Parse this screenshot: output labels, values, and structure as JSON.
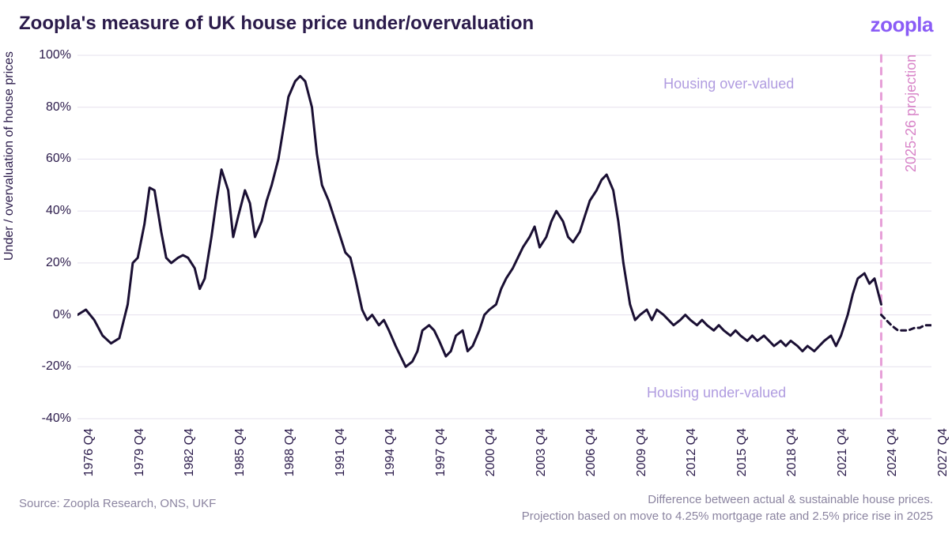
{
  "title": "Zoopla's measure of UK house price under/overvaluation",
  "logo_text": "zoopla",
  "y_axis_label": "Under / overvaluation of house prices",
  "colors": {
    "title": "#2b1b4b",
    "logo": "#8a5cf6",
    "axis_text": "#2b1b4b",
    "gridline": "#e5e0ee",
    "line_main": "#1a0f33",
    "line_proj": "#1a0f33",
    "proj_divider": "#e79fd8",
    "annotation": "#b09ce0",
    "proj_label": "#d884c8",
    "footer": "#8b84a0",
    "background": "#ffffff"
  },
  "chart": {
    "type": "line",
    "ylim": [
      -40,
      100
    ],
    "ytick_step": 20,
    "y_ticks": [
      -40,
      -20,
      0,
      20,
      40,
      60,
      80,
      100
    ],
    "y_tick_labels": [
      "-40%",
      "-20%",
      "0%",
      "20%",
      "40%",
      "60%",
      "80%",
      "100%"
    ],
    "x_start_year": 1976,
    "x_end_year": 2027,
    "x_ticks": [
      1976,
      1979,
      1982,
      1985,
      1988,
      1991,
      1994,
      1997,
      2000,
      2003,
      2006,
      2009,
      2012,
      2015,
      2018,
      2021,
      2024,
      2027
    ],
    "x_tick_labels": [
      "1976 Q4",
      "1979 Q4",
      "1982 Q4",
      "1985 Q4",
      "1988 Q4",
      "1991 Q4",
      "1994 Q4",
      "1997 Q4",
      "2000 Q4",
      "2003 Q4",
      "2006 Q4",
      "2009 Q4",
      "2012 Q4",
      "2015 Q4",
      "2018 Q4",
      "2021 Q4",
      "2024 Q4",
      "2027 Q4"
    ],
    "line_width_main": 3,
    "line_width_proj": 3,
    "proj_dash": "6 5",
    "divider_dash": "8 8",
    "divider_width": 3,
    "projection_start_year": 2024,
    "grid_on": true,
    "series_main": [
      [
        1976.0,
        0
      ],
      [
        1976.5,
        2
      ],
      [
        1977.0,
        -2
      ],
      [
        1977.5,
        -8
      ],
      [
        1978.0,
        -11
      ],
      [
        1978.5,
        -9
      ],
      [
        1979.0,
        4
      ],
      [
        1979.3,
        20
      ],
      [
        1979.6,
        22
      ],
      [
        1980.0,
        35
      ],
      [
        1980.3,
        49
      ],
      [
        1980.6,
        48
      ],
      [
        1981.0,
        32
      ],
      [
        1981.3,
        22
      ],
      [
        1981.6,
        20
      ],
      [
        1982.0,
        22
      ],
      [
        1982.3,
        23
      ],
      [
        1982.6,
        22
      ],
      [
        1983.0,
        18
      ],
      [
        1983.3,
        10
      ],
      [
        1983.6,
        14
      ],
      [
        1984.0,
        30
      ],
      [
        1984.3,
        44
      ],
      [
        1984.6,
        56
      ],
      [
        1985.0,
        48
      ],
      [
        1985.3,
        30
      ],
      [
        1985.6,
        38
      ],
      [
        1986.0,
        48
      ],
      [
        1986.3,
        43
      ],
      [
        1986.6,
        30
      ],
      [
        1987.0,
        36
      ],
      [
        1987.3,
        44
      ],
      [
        1987.6,
        50
      ],
      [
        1988.0,
        60
      ],
      [
        1988.3,
        72
      ],
      [
        1988.6,
        84
      ],
      [
        1989.0,
        90
      ],
      [
        1989.3,
        92
      ],
      [
        1989.6,
        90
      ],
      [
        1990.0,
        80
      ],
      [
        1990.3,
        62
      ],
      [
        1990.6,
        50
      ],
      [
        1991.0,
        44
      ],
      [
        1991.3,
        38
      ],
      [
        1991.6,
        32
      ],
      [
        1992.0,
        24
      ],
      [
        1992.3,
        22
      ],
      [
        1992.6,
        14
      ],
      [
        1993.0,
        2
      ],
      [
        1993.3,
        -2
      ],
      [
        1993.6,
        0
      ],
      [
        1994.0,
        -4
      ],
      [
        1994.3,
        -2
      ],
      [
        1994.6,
        -6
      ],
      [
        1995.0,
        -12
      ],
      [
        1995.3,
        -16
      ],
      [
        1995.6,
        -20
      ],
      [
        1996.0,
        -18
      ],
      [
        1996.3,
        -14
      ],
      [
        1996.6,
        -6
      ],
      [
        1997.0,
        -4
      ],
      [
        1997.3,
        -6
      ],
      [
        1997.6,
        -10
      ],
      [
        1998.0,
        -16
      ],
      [
        1998.3,
        -14
      ],
      [
        1998.6,
        -8
      ],
      [
        1999.0,
        -6
      ],
      [
        1999.3,
        -14
      ],
      [
        1999.6,
        -12
      ],
      [
        2000.0,
        -6
      ],
      [
        2000.3,
        0
      ],
      [
        2000.6,
        2
      ],
      [
        2001.0,
        4
      ],
      [
        2001.3,
        10
      ],
      [
        2001.6,
        14
      ],
      [
        2002.0,
        18
      ],
      [
        2002.3,
        22
      ],
      [
        2002.6,
        26
      ],
      [
        2003.0,
        30
      ],
      [
        2003.3,
        34
      ],
      [
        2003.6,
        26
      ],
      [
        2004.0,
        30
      ],
      [
        2004.3,
        36
      ],
      [
        2004.6,
        40
      ],
      [
        2005.0,
        36
      ],
      [
        2005.3,
        30
      ],
      [
        2005.6,
        28
      ],
      [
        2006.0,
        32
      ],
      [
        2006.3,
        38
      ],
      [
        2006.6,
        44
      ],
      [
        2007.0,
        48
      ],
      [
        2007.3,
        52
      ],
      [
        2007.6,
        54
      ],
      [
        2008.0,
        48
      ],
      [
        2008.3,
        36
      ],
      [
        2008.6,
        20
      ],
      [
        2009.0,
        4
      ],
      [
        2009.3,
        -2
      ],
      [
        2009.6,
        0
      ],
      [
        2010.0,
        2
      ],
      [
        2010.3,
        -2
      ],
      [
        2010.6,
        2
      ],
      [
        2011.0,
        0
      ],
      [
        2011.3,
        -2
      ],
      [
        2011.6,
        -4
      ],
      [
        2012.0,
        -2
      ],
      [
        2012.3,
        0
      ],
      [
        2012.6,
        -2
      ],
      [
        2013.0,
        -4
      ],
      [
        2013.3,
        -2
      ],
      [
        2013.6,
        -4
      ],
      [
        2014.0,
        -6
      ],
      [
        2014.3,
        -4
      ],
      [
        2014.6,
        -6
      ],
      [
        2015.0,
        -8
      ],
      [
        2015.3,
        -6
      ],
      [
        2015.6,
        -8
      ],
      [
        2016.0,
        -10
      ],
      [
        2016.3,
        -8
      ],
      [
        2016.6,
        -10
      ],
      [
        2017.0,
        -8
      ],
      [
        2017.3,
        -10
      ],
      [
        2017.6,
        -12
      ],
      [
        2018.0,
        -10
      ],
      [
        2018.3,
        -12
      ],
      [
        2018.6,
        -10
      ],
      [
        2019.0,
        -12
      ],
      [
        2019.3,
        -14
      ],
      [
        2019.6,
        -12
      ],
      [
        2020.0,
        -14
      ],
      [
        2020.3,
        -12
      ],
      [
        2020.6,
        -10
      ],
      [
        2021.0,
        -8
      ],
      [
        2021.3,
        -12
      ],
      [
        2021.6,
        -8
      ],
      [
        2022.0,
        0
      ],
      [
        2022.3,
        8
      ],
      [
        2022.6,
        14
      ],
      [
        2023.0,
        16
      ],
      [
        2023.3,
        12
      ],
      [
        2023.6,
        14
      ],
      [
        2024.0,
        4
      ]
    ],
    "series_proj": [
      [
        2024.0,
        0
      ],
      [
        2024.3,
        -2
      ],
      [
        2024.6,
        -4
      ],
      [
        2025.0,
        -6
      ],
      [
        2025.3,
        -6
      ],
      [
        2025.6,
        -6
      ],
      [
        2026.0,
        -5
      ],
      [
        2026.3,
        -5
      ],
      [
        2026.6,
        -4
      ],
      [
        2027.0,
        -4
      ]
    ]
  },
  "annotations": {
    "over": "Housing over-valued",
    "under": "Housing under-valued",
    "proj": "2025-26 projection"
  },
  "footer_left": "Source: Zoopla Research, ONS, UKF",
  "footer_right_line1": "Difference between actual & sustainable house prices.",
  "footer_right_line2": "Projection based on move to 4.25% mortgage rate and 2.5% price rise in 2025"
}
